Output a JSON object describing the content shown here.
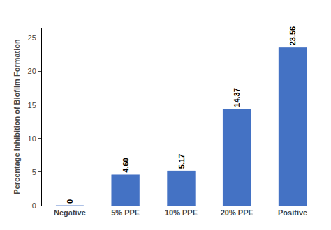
{
  "chart_data": {
    "type": "bar",
    "categories": [
      "Negative",
      "5% PPE",
      "10% PPE",
      "20% PPE",
      "Positive"
    ],
    "values": [
      0,
      4.6,
      5.17,
      14.37,
      23.56
    ],
    "value_labels": [
      "0",
      "4.60",
      "5.17",
      "14.37",
      "23.56"
    ],
    "data_labels": true,
    "color": "#4472C4",
    "ylabel": "Percentage Inhibition of Biofilm Formation",
    "ylim": [
      0,
      26.5
    ],
    "yticks": [
      0,
      5,
      10,
      15,
      20,
      25
    ],
    "grid": false
  }
}
